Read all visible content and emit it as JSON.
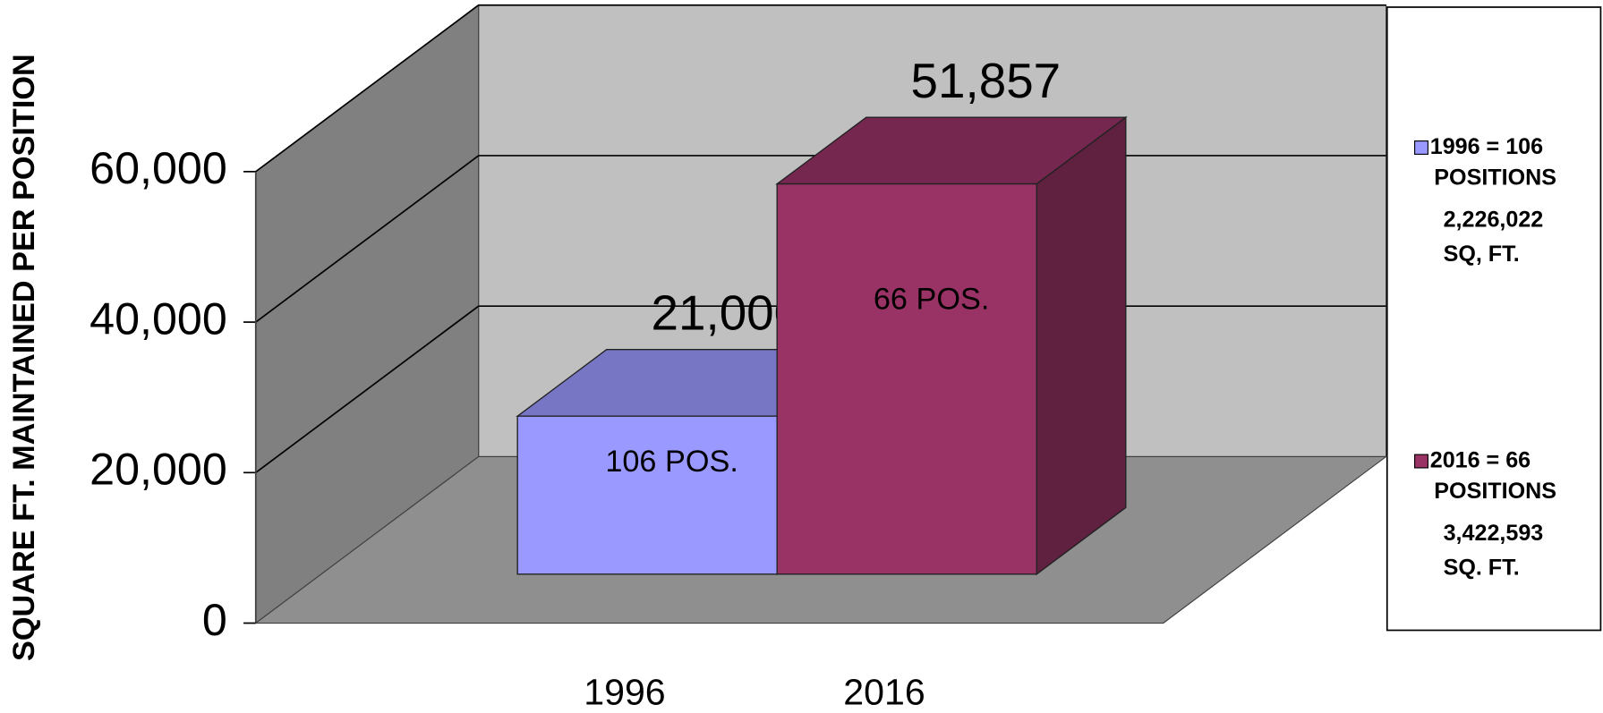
{
  "chart_data": {
    "type": "bar3d",
    "y_axis_label": "SQUARE FT. MAINTAINED PER POSITION",
    "categories": [
      "1996",
      "2016"
    ],
    "values": [
      21000,
      51857
    ],
    "value_labels": [
      "21,000",
      "51,857"
    ],
    "bar_labels": [
      "106 POS.",
      "66 POS."
    ],
    "colors": [
      "#9999ff",
      "#993366"
    ],
    "ylim": [
      0,
      60000
    ],
    "yticks": [
      0,
      {
        "value": 20000,
        "label": "20,000"
      },
      {
        "value": 40000,
        "label": "40,000"
      },
      {
        "value": 60000,
        "label": "60,000"
      }
    ],
    "grid": true,
    "legend": [
      {
        "lines": [
          "1996 = 106",
          "POSITIONS"
        ],
        "note_lines": [
          "2,226,022",
          "SQ, FT."
        ]
      },
      {
        "lines": [
          "2016 = 66",
          "POSITIONS"
        ],
        "note_lines": [
          "3,422,593",
          "SQ. FT."
        ]
      }
    ]
  }
}
